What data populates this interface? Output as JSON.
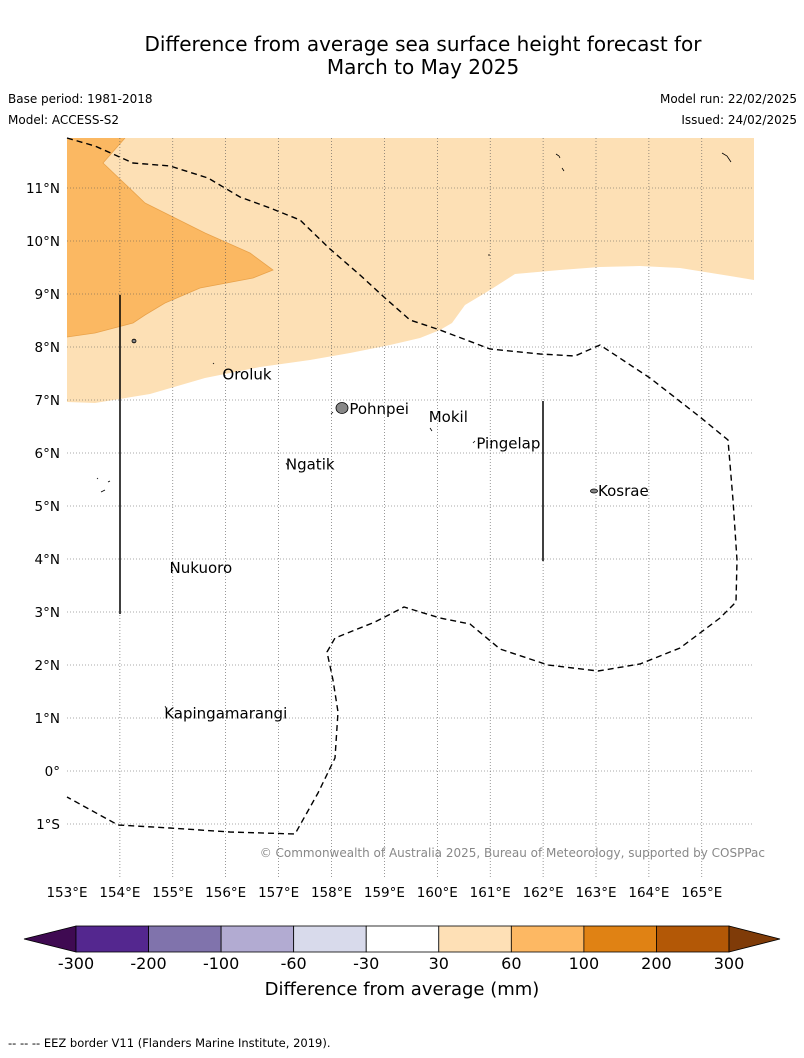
{
  "title": {
    "line1": "Difference from average sea surface height forecast for",
    "line2": "March to May 2025"
  },
  "meta": {
    "base_period": "Base period: 1981-2018",
    "model": "Model: ACCESS-S2",
    "model_run": "Model run: 22/02/2025",
    "issued": "Issued: 24/02/2025"
  },
  "map": {
    "lon_range": [
      153,
      166
    ],
    "lat_range": [
      -2,
      12
    ],
    "lon_ticks": [
      "153°E",
      "154°E",
      "155°E",
      "156°E",
      "157°E",
      "158°E",
      "159°E",
      "160°E",
      "161°E",
      "162°E",
      "163°E",
      "164°E",
      "165°E"
    ],
    "lat_ticks": [
      "11°N",
      "10°N",
      "9°N",
      "8°N",
      "7°N",
      "6°N",
      "5°N",
      "4°N",
      "3°N",
      "2°N",
      "1°N",
      "0°",
      "1°S"
    ],
    "places": [
      {
        "name": "Oroluk",
        "lon": 155.9,
        "lat": 7.5
      },
      {
        "name": "Pohnpei",
        "lon": 158.3,
        "lat": 6.85
      },
      {
        "name": "Mokil",
        "lon": 159.8,
        "lat": 6.7
      },
      {
        "name": "Pingelap",
        "lon": 160.7,
        "lat": 6.2
      },
      {
        "name": "Ngatik",
        "lon": 157.1,
        "lat": 5.8
      },
      {
        "name": "Kosrae",
        "lon": 163.0,
        "lat": 5.3
      },
      {
        "name": "Nukuoro",
        "lon": 154.9,
        "lat": 3.85
      },
      {
        "name": "Kapingamarangi",
        "lon": 154.8,
        "lat": 1.1
      }
    ],
    "copyright": "© Commonwealth of Australia 2025, Bureau of Meteorology, supported by COSPPac",
    "anomaly_fill_colors": {
      "30-60": "#fde0b5",
      "60-100": "#fbb862"
    },
    "eez_border_style": "dashed"
  },
  "colorbar": {
    "tick_labels": [
      "-300",
      "-200",
      "-100",
      "-60",
      "-30",
      "30",
      "60",
      "100",
      "200",
      "300"
    ],
    "label": "Difference from average (mm)",
    "colors": [
      "#3f0a52",
      "#54278f",
      "#8073ac",
      "#b2abd2",
      "#d8daeb",
      "#ffffff",
      "#fee0b6",
      "#fdb863",
      "#e08214",
      "#b35806",
      "#7f3b08"
    ]
  },
  "footer": "--  --  -- EEZ border V11 (Flanders Marine Institute, 2019)."
}
